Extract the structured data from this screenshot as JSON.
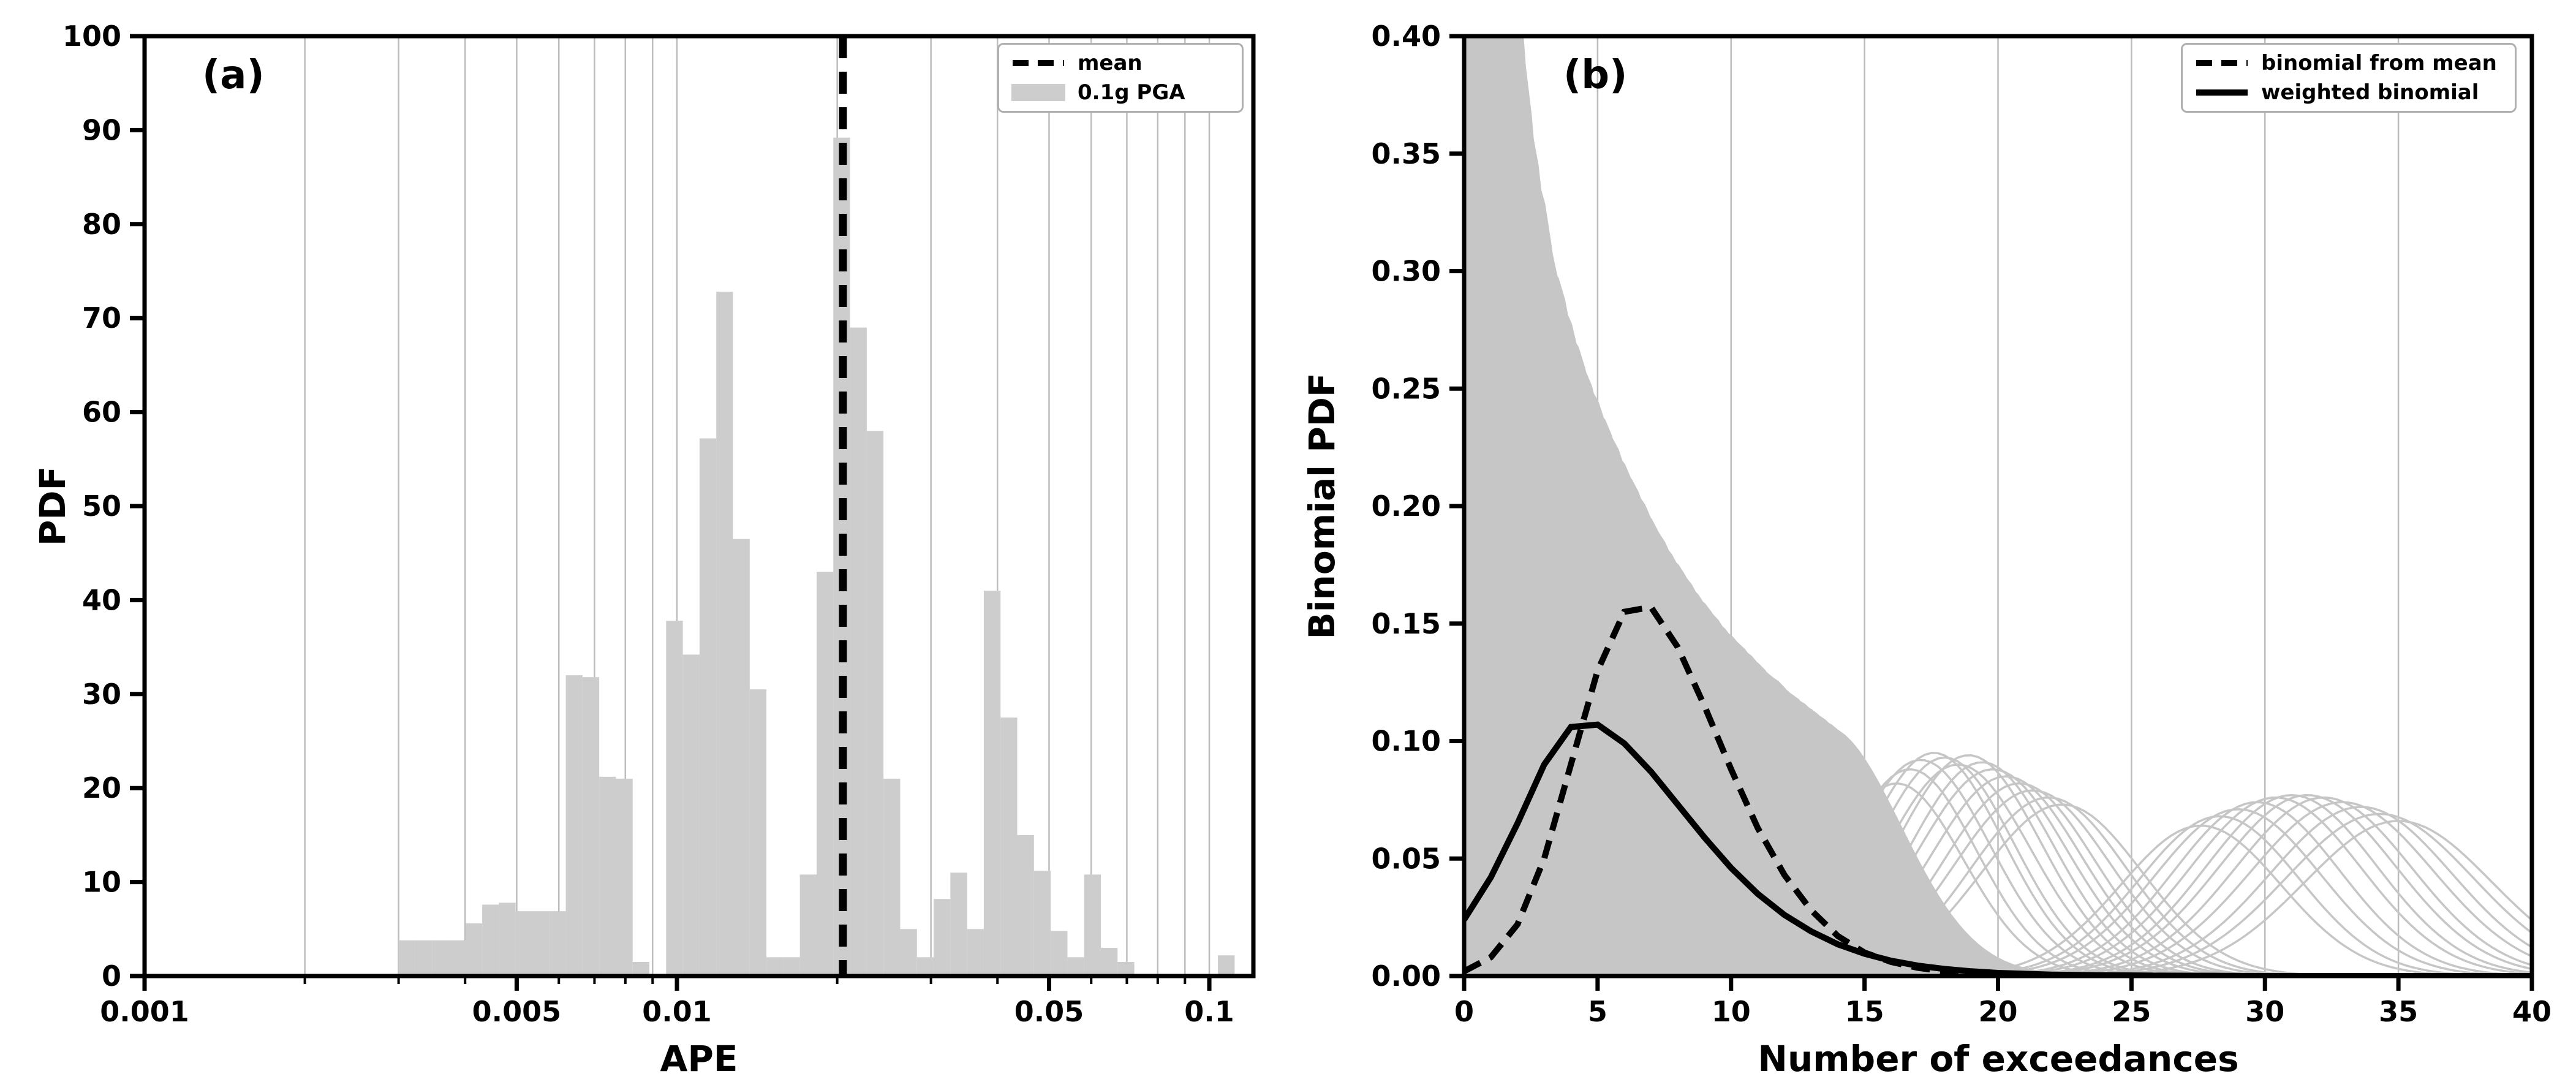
{
  "colors": {
    "background": "#ffffff",
    "bar": "#cdcdcd",
    "curve_gray": "#c6c6c6",
    "grid": "#bdbdbd",
    "black": "#000000",
    "legend_border": "#b0b0b0"
  },
  "chart_data": [
    {
      "id": "a",
      "type": "bar",
      "panel_label": "(a)",
      "xlabel": "APE",
      "ylabel": "PDF",
      "xscale": "log",
      "xlim": [
        0.001,
        0.121
      ],
      "ylim": [
        0,
        100
      ],
      "grid": "vertical",
      "legend_position": "upper right",
      "series_label": "0.1g PGA",
      "x_ticks": {
        "values": [
          0.001,
          0.005,
          0.01,
          0.05,
          0.1
        ],
        "labels": [
          "0.001",
          "0.005",
          "0.01",
          "0.05",
          "0.1"
        ]
      },
      "x_grid": [
        0.002,
        0.003,
        0.004,
        0.005,
        0.006,
        0.007,
        0.008,
        0.009,
        0.01,
        0.02,
        0.03,
        0.04,
        0.05,
        0.06,
        0.07,
        0.08,
        0.09,
        0.1
      ],
      "y_ticks": [
        0,
        10,
        20,
        30,
        40,
        50,
        60,
        70,
        80,
        90,
        100
      ],
      "mean_line": {
        "label": "mean",
        "x": 0.0205,
        "style": "dashed"
      },
      "bin_edges": [
        0.003,
        0.003225,
        0.003467,
        0.003727,
        0.004007,
        0.004307,
        0.00463,
        0.004977,
        0.005351,
        0.005752,
        0.006183,
        0.006647,
        0.007145,
        0.007681,
        0.008257,
        0.008877,
        0.009542,
        0.010258,
        0.011027,
        0.011854,
        0.012743,
        0.013699,
        0.014727,
        0.015831,
        0.017018,
        0.018295,
        0.019667,
        0.021142,
        0.022727,
        0.024432,
        0.026264,
        0.028234,
        0.030352,
        0.032628,
        0.035075,
        0.037706,
        0.040534,
        0.043574,
        0.046842,
        0.050355,
        0.054132,
        0.058192,
        0.062556,
        0.067248,
        0.072292,
        0.077714,
        0.083542,
        0.089808,
        0.096544,
        0.103785,
        0.111569
      ],
      "heights": [
        3.8,
        3.8,
        3.8,
        3.8,
        5.6,
        7.6,
        7.8,
        6.9,
        6.9,
        6.9,
        32.0,
        31.8,
        21.2,
        21.0,
        1.5,
        0,
        37.8,
        34.2,
        57.2,
        72.8,
        46.5,
        30.5,
        2.0,
        2.0,
        10.8,
        43.0,
        89.2,
        69.0,
        58.0,
        21.0,
        5.0,
        2.0,
        8.2,
        11.0,
        5.0,
        41.0,
        27.5,
        15.0,
        11.2,
        4.8,
        2.0,
        10.8,
        3.0,
        1.5,
        0,
        0,
        0,
        0,
        0,
        2.2
      ],
      "legend": [
        {
          "label": "mean",
          "sample": "dashed-line"
        },
        {
          "label": "0.1g PGA",
          "sample": "gray-box"
        }
      ]
    },
    {
      "id": "b",
      "type": "line",
      "panel_label": "(b)",
      "xlabel": "Number of exceedances",
      "ylabel": "Binomial PDF",
      "xlim": [
        0,
        40
      ],
      "ylim": [
        0,
        0.4
      ],
      "grid": "vertical",
      "legend_position": "upper right",
      "x_ticks": {
        "values": [
          0,
          5,
          10,
          15,
          20,
          25,
          30,
          35,
          40
        ],
        "labels": [
          "0",
          "5",
          "10",
          "15",
          "20",
          "25",
          "30",
          "35",
          "40"
        ]
      },
      "y_ticks": {
        "values": [
          0,
          0.05,
          0.1,
          0.15,
          0.2,
          0.25,
          0.3,
          0.35,
          0.4
        ],
        "labels": [
          "0.00",
          "0.05",
          "0.10",
          "0.15",
          "0.20",
          "0.25",
          "0.30",
          "0.35",
          "0.40"
        ]
      },
      "x_grid": [
        5,
        10,
        15,
        20,
        25,
        30,
        35
      ],
      "gray_curves": {
        "dense": {
          "mu": [
            0.3,
            0.63,
            0.96,
            1.29,
            1.62,
            1.95,
            2.28,
            2.61,
            2.94,
            3.27,
            3.6,
            3.93,
            4.26,
            4.59,
            4.92,
            5.25,
            5.58,
            5.91,
            6.24,
            6.57,
            6.9,
            7.23,
            7.56,
            7.89,
            8.22,
            8.55,
            8.88,
            9.21,
            9.54,
            9.87,
            10.2,
            10.53,
            10.86,
            11.19,
            11.52,
            11.85,
            12.18,
            12.51,
            12.84,
            13.17,
            13.5
          ],
          "sigma": [
            0.9,
            0.9,
            0.93,
            1.06,
            1.19,
            1.3,
            1.4,
            1.49,
            1.57,
            1.65,
            1.72,
            1.79,
            1.85,
            1.91,
            1.97,
            2.02,
            2.08,
            2.12,
            2.17,
            2.21,
            2.26,
            2.3,
            2.34,
            2.37,
            2.41,
            2.44,
            2.48,
            2.51,
            2.54,
            2.57,
            2.6,
            2.62,
            2.65,
            2.67,
            2.7,
            2.72,
            2.74,
            2.76,
            2.78,
            2.8,
            2.82
          ],
          "amp": [
            0.62,
            0.58,
            0.54,
            0.5,
            0.45,
            0.4,
            0.365,
            0.34,
            0.315,
            0.3,
            0.285,
            0.272,
            0.26,
            0.25,
            0.24,
            0.231,
            0.222,
            0.214,
            0.206,
            0.198,
            0.191,
            0.184,
            0.178,
            0.172,
            0.166,
            0.161,
            0.156,
            0.151,
            0.147,
            0.143,
            0.139,
            0.135,
            0.131,
            0.128,
            0.124,
            0.121,
            0.118,
            0.115,
            0.112,
            0.109,
            0.106
          ]
        },
        "mid": {
          "mu": [
            16.2,
            16.7,
            17.1,
            17.6,
            18.0,
            18.5,
            18.9,
            19.4,
            19.8,
            20.3,
            20.8,
            21.3,
            21.9,
            22.4
          ],
          "sigma": [
            2.5,
            2.5,
            2.6,
            2.6,
            2.6,
            2.7,
            2.7,
            2.7,
            2.8,
            2.8,
            2.8,
            2.9,
            2.9,
            3.0
          ],
          "amp": [
            0.082,
            0.088,
            0.092,
            0.095,
            0.093,
            0.09,
            0.094,
            0.091,
            0.088,
            0.085,
            0.082,
            0.079,
            0.076,
            0.073
          ]
        },
        "high": {
          "mu": [
            27.6,
            28.3,
            29.0,
            29.7,
            30.4,
            31.0,
            31.6,
            32.2,
            32.9,
            33.6,
            34.3,
            35.0
          ],
          "sigma": [
            3.0,
            3.0,
            3.1,
            3.1,
            3.2,
            3.2,
            3.3,
            3.3,
            3.4,
            3.4,
            3.5,
            3.5
          ],
          "amp": [
            0.064,
            0.068,
            0.071,
            0.074,
            0.076,
            0.077,
            0.077,
            0.076,
            0.074,
            0.072,
            0.069,
            0.066
          ]
        }
      },
      "dashed_curve": {
        "label": "binomial from mean",
        "x": [
          0,
          1,
          2,
          3,
          4,
          5,
          6,
          7,
          8,
          9,
          10,
          11,
          12,
          13,
          14,
          15,
          16,
          17,
          18,
          19,
          20,
          21,
          22,
          25,
          30,
          40
        ],
        "y": [
          0.002,
          0.008,
          0.022,
          0.05,
          0.09,
          0.13,
          0.155,
          0.157,
          0.14,
          0.115,
          0.088,
          0.063,
          0.043,
          0.028,
          0.017,
          0.01,
          0.006,
          0.0035,
          0.002,
          0.001,
          0.0006,
          0.0003,
          0.0002,
          0.0001,
          0,
          0
        ]
      },
      "solid_curve": {
        "label": "weighted binomial",
        "x": [
          0,
          1,
          2,
          3,
          4,
          5,
          6,
          7,
          8,
          9,
          10,
          11,
          12,
          13,
          14,
          15,
          16,
          17,
          18,
          19,
          20,
          22,
          24,
          26,
          28,
          30,
          35,
          40
        ],
        "y": [
          0.024,
          0.042,
          0.065,
          0.09,
          0.106,
          0.107,
          0.099,
          0.087,
          0.073,
          0.059,
          0.046,
          0.035,
          0.026,
          0.019,
          0.0135,
          0.0095,
          0.0065,
          0.0044,
          0.003,
          0.002,
          0.0013,
          0.0006,
          0.0003,
          0.00015,
          0.0001,
          0,
          0,
          0
        ]
      },
      "legend": [
        {
          "label": "binomial from mean",
          "sample": "dashed-line"
        },
        {
          "label": "weighted binomial",
          "sample": "solid-line"
        }
      ]
    }
  ]
}
